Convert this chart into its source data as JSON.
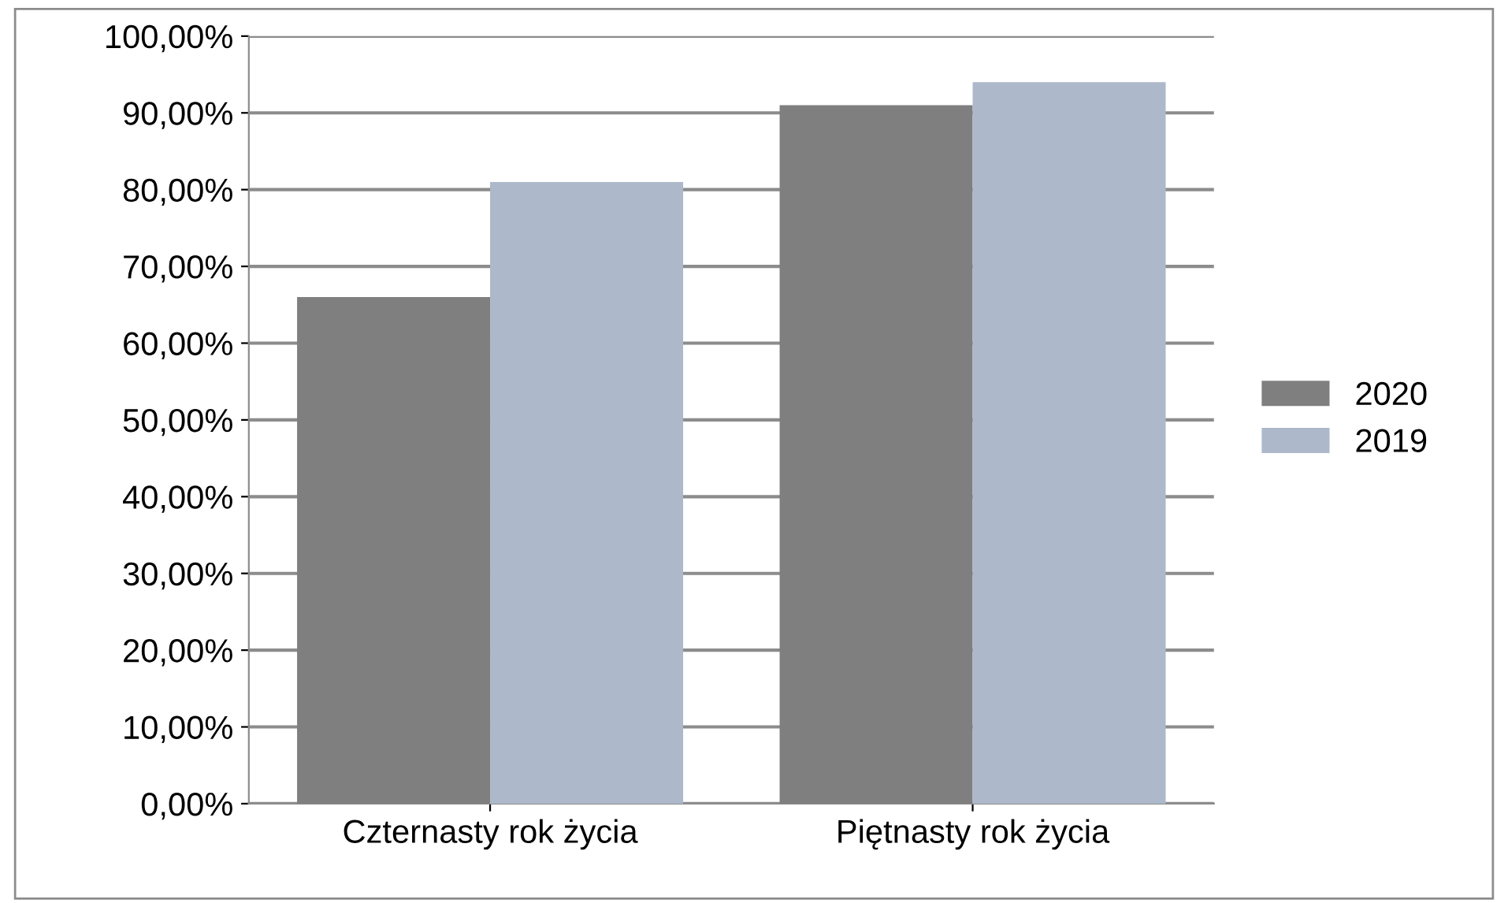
{
  "chart_data": {
    "type": "bar",
    "categories": [
      "Czternasty rok życia",
      "Piętnasty rok życia"
    ],
    "series": [
      {
        "name": "2020",
        "color": "#7f7f7f",
        "values": [
          66,
          91
        ]
      },
      {
        "name": "2019",
        "color": "#adb9ca",
        "values": [
          81,
          94
        ]
      }
    ],
    "ylim": [
      0,
      100
    ],
    "yticks": [
      {
        "value": 0,
        "label": "0,00%"
      },
      {
        "value": 10,
        "label": "10,00%"
      },
      {
        "value": 20,
        "label": "20,00%"
      },
      {
        "value": 30,
        "label": "30,00%"
      },
      {
        "value": 40,
        "label": "40,00%"
      },
      {
        "value": 50,
        "label": "50,00%"
      },
      {
        "value": 60,
        "label": "60,00%"
      },
      {
        "value": 70,
        "label": "70,00%"
      },
      {
        "value": 80,
        "label": "80,00%"
      },
      {
        "value": 90,
        "label": "90,00%"
      },
      {
        "value": 100,
        "label": "100,00%"
      }
    ],
    "grid": "y",
    "legend": "right"
  }
}
